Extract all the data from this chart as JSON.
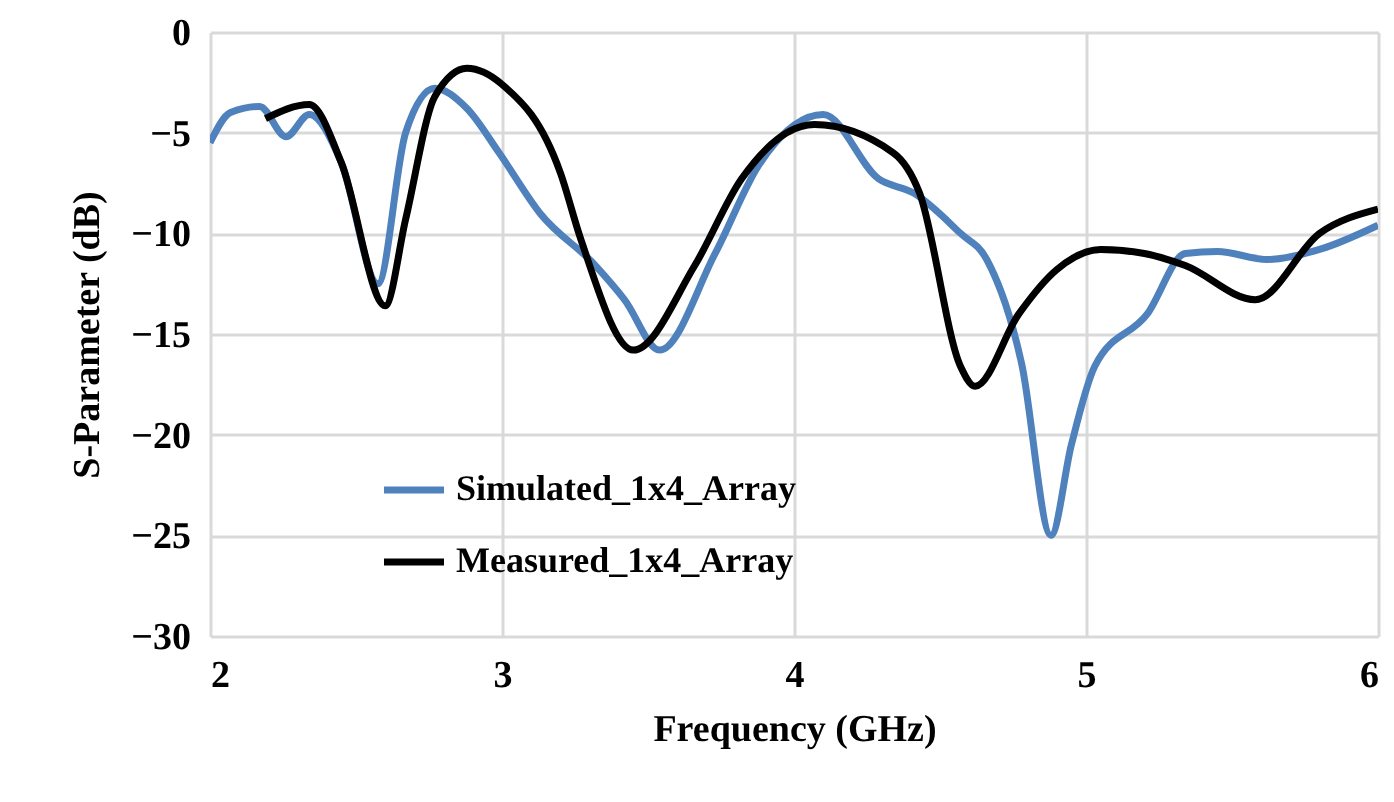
{
  "chart_data": {
    "type": "line",
    "xlabel": "Frequency (GHz)",
    "ylabel": "S-Parameter (dB)",
    "xlim": [
      2,
      6
    ],
    "xticks": [
      2,
      3,
      4,
      5,
      6
    ],
    "ylim": [
      -30,
      0
    ],
    "yticks": [
      -30,
      -25,
      -20,
      -15,
      -10,
      -5,
      0
    ],
    "grid": true,
    "legend": "bottom left",
    "marker": "none",
    "line_style": "solid",
    "series": [
      {
        "name": "Simulated_1x4_Array",
        "color": "#4f81bd",
        "x": [
          2,
          2.07,
          2.17,
          2.26,
          2.34,
          2.45,
          2.575,
          2.67,
          2.77,
          2.88,
          2.99,
          3.13,
          3.32,
          3.42,
          3.54,
          3.73,
          3.88,
          4.1,
          4.29,
          4.41,
          4.57,
          4.66,
          4.78,
          4.88,
          4.95,
          5.03,
          5.21,
          5.34,
          5.45,
          5.62,
          5.8,
          6
        ],
        "values": [
          -5.5,
          -4.0,
          -3.7,
          -5.2,
          -4.1,
          -6.5,
          -12.5,
          -5.0,
          -2.8,
          -3.8,
          -6.0,
          -9.0,
          -11.6,
          -13.3,
          -15.8,
          -11.0,
          -6.6,
          -4.1,
          -7.3,
          -8.0,
          -10.0,
          -11.3,
          -16.5,
          -25.0,
          -20.5,
          -16.6,
          -14.0,
          -11.0,
          -10.9,
          -11.3,
          -10.8,
          -9.6
        ]
      },
      {
        "name": "Measured_1x4_Array",
        "color": "#000000",
        "x": [
          2.19,
          2.34,
          2.45,
          2.6,
          2.67,
          2.77,
          2.88,
          3.0,
          3.2,
          3.27,
          3.45,
          3.66,
          3.82,
          4.07,
          4.34,
          4.43,
          4.57,
          4.62,
          4.77,
          4.9,
          5.05,
          5.2,
          5.34,
          5.58,
          5.8,
          6
        ],
        "values": [
          -4.3,
          -3.6,
          -6.5,
          -13.6,
          -9.3,
          -3.2,
          -1.8,
          -2.6,
          -7.0,
          -10.3,
          -15.8,
          -11.6,
          -7.3,
          -4.6,
          -6.0,
          -8.0,
          -16.6,
          -17.6,
          -14.0,
          -11.8,
          -10.8,
          -11.0,
          -11.6,
          -13.3,
          -10.0,
          -8.8
        ]
      }
    ]
  }
}
